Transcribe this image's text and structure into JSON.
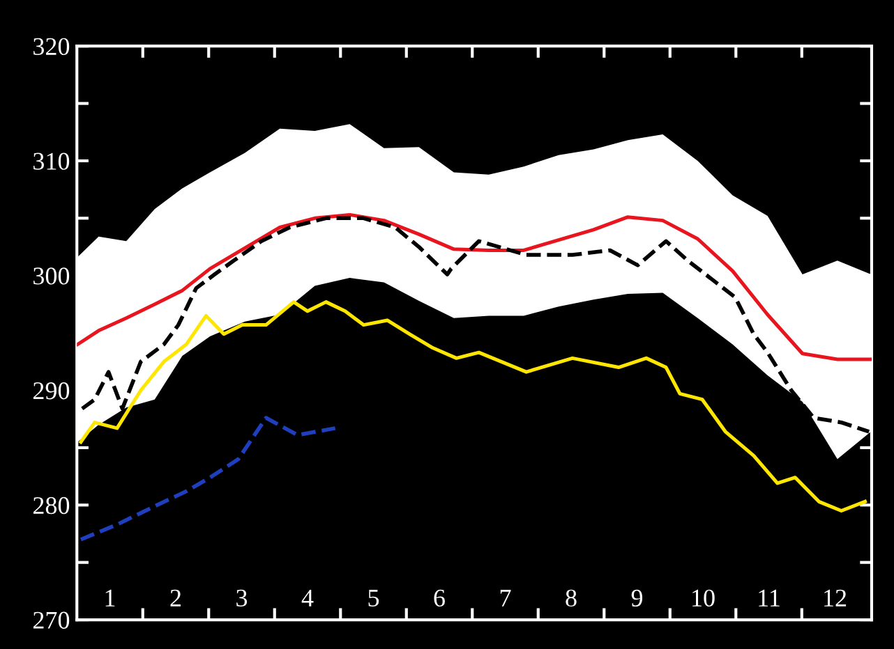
{
  "chart_data": {
    "type": "line",
    "xlim": [
      0.5,
      12.56
    ],
    "ylim": [
      270,
      320
    ],
    "xticks": [
      1,
      2,
      3,
      4,
      5,
      6,
      7,
      8,
      9,
      10,
      11,
      12,
      {
        "value": 1.5,
        "label": null
      },
      {
        "value": 2.5,
        "label": null
      },
      {
        "value": 3.5,
        "label": null
      },
      {
        "value": 4.5,
        "label": null
      },
      {
        "value": 5.5,
        "label": null
      },
      {
        "value": 6.5,
        "label": null
      },
      {
        "value": 7.5,
        "label": null
      },
      {
        "value": 8.5,
        "label": null
      },
      {
        "value": 9.5,
        "label": null
      },
      {
        "value": 10.5,
        "label": null
      },
      {
        "value": 11.5,
        "label": null
      }
    ],
    "yticks": [
      270,
      280,
      290,
      300,
      310,
      320,
      {
        "value": 275,
        "label": null
      },
      {
        "value": 285,
        "label": null
      },
      {
        "value": 295,
        "label": null
      },
      {
        "value": 305,
        "label": null
      },
      {
        "value": 315,
        "label": null
      }
    ],
    "grid": false,
    "series": [
      {
        "color": "#e8141e",
        "line_style": "solid",
        "x": [
          0.51,
          0.83,
          1.25,
          1.68,
          2.1,
          2.52,
          3.05,
          3.58,
          4.11,
          4.64,
          5.16,
          5.69,
          6.22,
          6.75,
          7.28,
          7.81,
          8.34,
          8.86,
          9.39,
          9.92,
          10.45,
          10.98,
          11.51,
          12.04,
          12.55
        ],
        "values": [
          294,
          295.2,
          296.3,
          297.5,
          298.7,
          300.6,
          302.4,
          304.2,
          305,
          305.3,
          304.8,
          303.6,
          302.3,
          302.2,
          302.2,
          303.1,
          304,
          305.1,
          304.8,
          303.2,
          300.4,
          296.6,
          293.2,
          292.7,
          292.7
        ],
        "lower": [
          285.5,
          287,
          288.5,
          289.2,
          293,
          294.7,
          296,
          296.6,
          299.1,
          299.8,
          299.4,
          297.8,
          296.3,
          296.5,
          296.5,
          297.3,
          297.9,
          298.4,
          298.5,
          296.3,
          294,
          291.3,
          289,
          284,
          286.4
        ],
        "upper": [
          301.6,
          303.4,
          303,
          305.8,
          307.6,
          309,
          310.7,
          312.8,
          312.6,
          313.2,
          311.1,
          311.2,
          309,
          308.8,
          309.5,
          310.5,
          311,
          311.8,
          312.3,
          310,
          307,
          305.2,
          300.1,
          301.3,
          300.1
        ]
      },
      {
        "color": "#000000",
        "line_style": "dashed",
        "x": [
          0.58,
          0.77,
          0.98,
          1.19,
          1.47,
          1.82,
          2.04,
          2.31,
          2.59,
          2.88,
          3.3,
          3.73,
          4.28,
          4.85,
          5.33,
          5.69,
          6.12,
          6.18,
          6.6,
          7.32,
          8.02,
          8.59,
          9.01,
          9.44,
          9.77,
          10.13,
          10.49,
          10.77,
          10.98,
          11.34,
          11.68,
          12.1,
          12.52
        ],
        "values": [
          288.4,
          289.2,
          291.6,
          288.4,
          292.5,
          294,
          295.7,
          298.9,
          300.1,
          301.3,
          303,
          304.2,
          305,
          305,
          304.2,
          302.5,
          300.1,
          300.6,
          303,
          301.8,
          301.8,
          302.2,
          300.9,
          303,
          301.3,
          299.7,
          298.1,
          294.9,
          293.3,
          290,
          287.6,
          287.2,
          286.4
        ]
      },
      {
        "color": "#ffe600",
        "line_style": "solid",
        "x": [
          0.56,
          0.77,
          1.11,
          1.47,
          1.82,
          2.16,
          2.46,
          2.73,
          3.01,
          3.37,
          3.79,
          4.0,
          4.28,
          4.57,
          4.85,
          5.21,
          5.55,
          5.9,
          6.26,
          6.6,
          7.32,
          8.02,
          8.72,
          9.14,
          9.44,
          9.65,
          9.99,
          10.34,
          10.77,
          11.13,
          11.4,
          11.76,
          12.1,
          12.46
        ],
        "values": [
          285.5,
          287.2,
          286.7,
          290,
          292.5,
          294,
          296.5,
          294.9,
          295.7,
          295.7,
          297.7,
          296.9,
          297.7,
          296.9,
          295.7,
          296.1,
          294.9,
          293.7,
          292.8,
          293.3,
          291.6,
          292.8,
          292,
          292.8,
          292,
          289.7,
          289.2,
          286.4,
          284.3,
          281.9,
          282.4,
          280.3,
          279.5,
          280.3
        ]
      },
      {
        "color": "#1f3fbf",
        "line_style": "dashed",
        "x": [
          0.56,
          1.11,
          1.68,
          2.16,
          2.52,
          2.95,
          3.37,
          3.85,
          4.42
        ],
        "values": [
          277,
          278.3,
          279.9,
          281.2,
          282.4,
          284,
          287.6,
          286.1,
          286.7
        ]
      }
    ]
  }
}
